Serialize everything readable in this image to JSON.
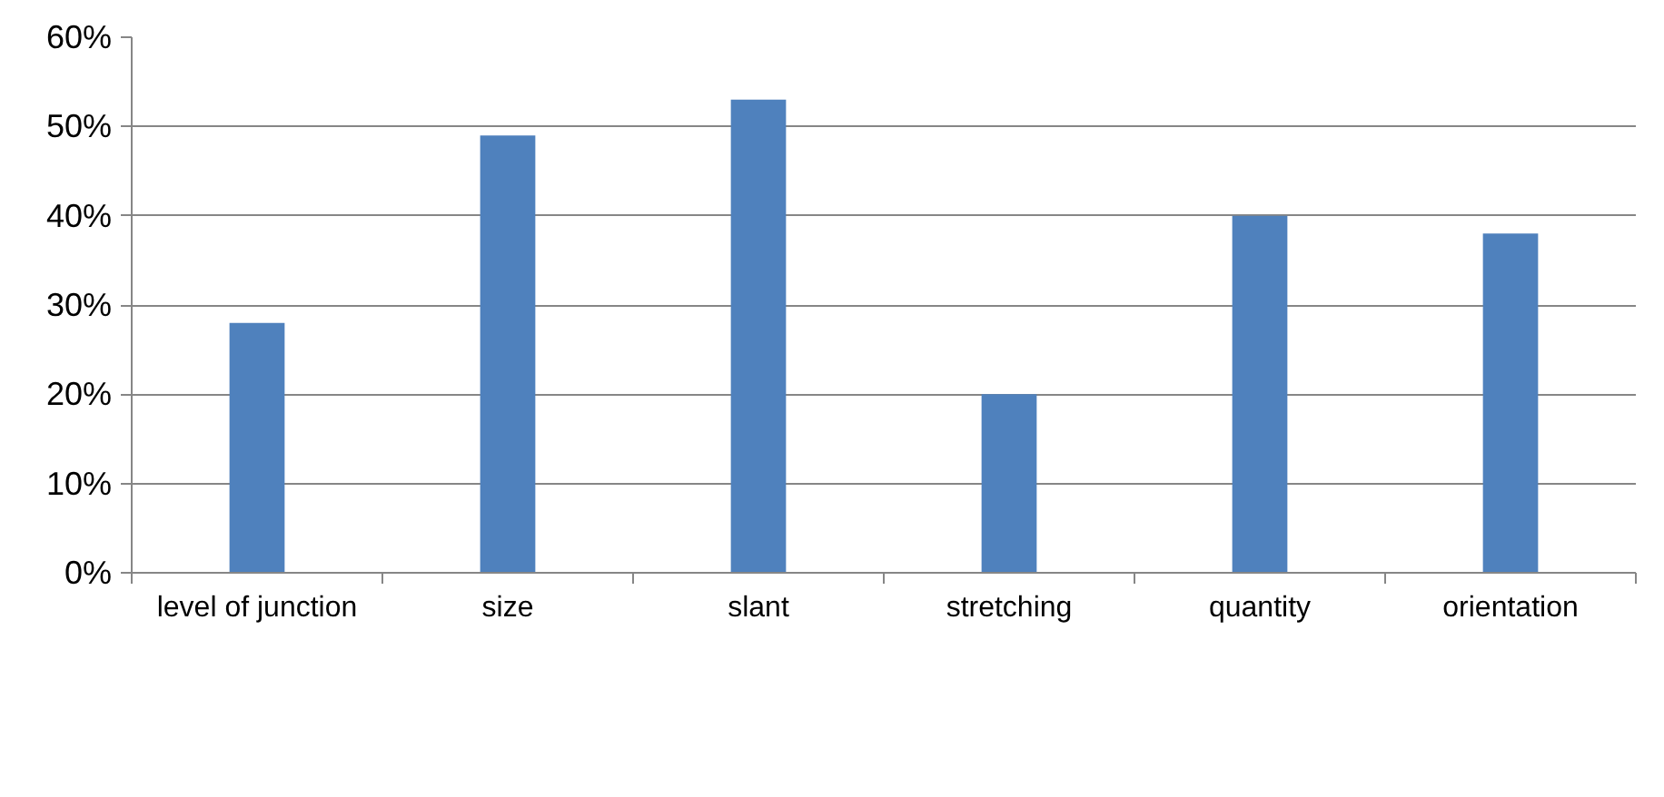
{
  "chart_data": {
    "type": "bar",
    "categories": [
      "level of junction",
      "size",
      "slant",
      "stretching",
      "quantity",
      "orientation"
    ],
    "values": [
      0.28,
      0.49,
      0.53,
      0.2,
      0.4,
      0.38
    ],
    "color": "#4f81bd",
    "ylim": [
      0,
      0.6
    ],
    "yticks": [
      {
        "value": 0,
        "label": "0%"
      },
      {
        "value": 0.1,
        "label": "10%"
      },
      {
        "value": 0.2,
        "label": "20%"
      },
      {
        "value": 0.3,
        "label": "30%"
      },
      {
        "value": 0.4,
        "label": "40%"
      },
      {
        "value": 0.5,
        "label": "50%"
      },
      {
        "value": 0.6,
        "label": "60%"
      }
    ],
    "grid": "y"
  }
}
